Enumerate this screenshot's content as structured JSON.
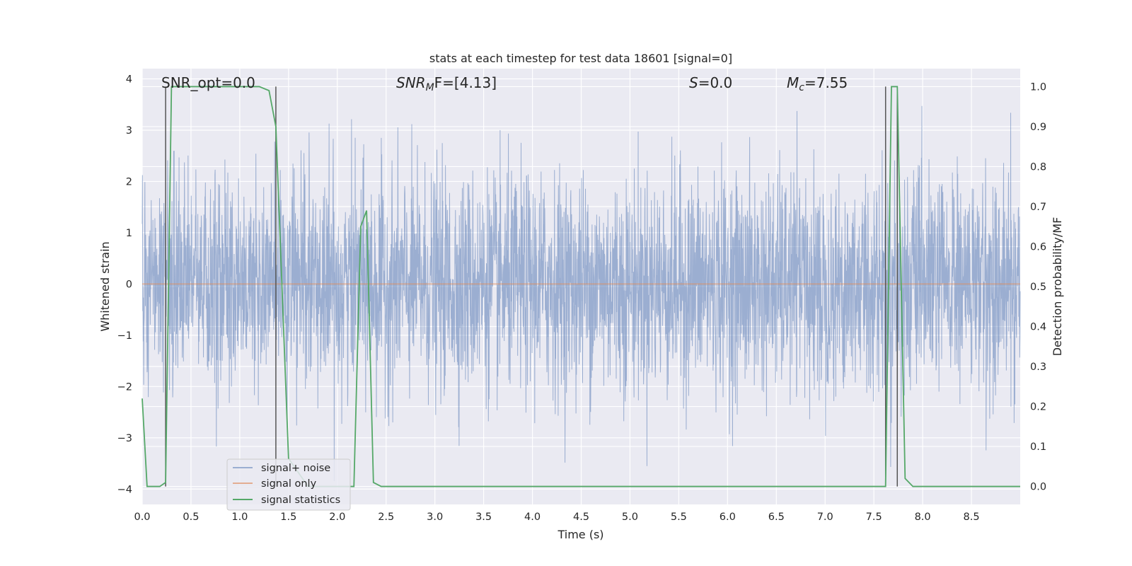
{
  "chart_data": {
    "type": "line",
    "title": "stats at each timestep for test data 18601 [signal=0]",
    "xlabel": "Time (s)",
    "ylabel_left": "Whitened strain",
    "ylabel_right": "Detection probability/MF",
    "xlim": [
      0.0,
      9.0
    ],
    "ylim_left": [
      -4.3,
      4.2
    ],
    "ylim_right": [
      -0.045,
      1.045
    ],
    "x_ticks": [
      "0.0",
      "0.5",
      "1.0",
      "1.5",
      "2.0",
      "2.5",
      "3.0",
      "3.5",
      "4.0",
      "4.5",
      "5.0",
      "5.5",
      "6.0",
      "6.5",
      "7.0",
      "7.5",
      "8.0",
      "8.5"
    ],
    "y_ticks_left": [
      "4",
      "3",
      "2",
      "1",
      "0",
      "−1",
      "−2",
      "−3",
      "−4"
    ],
    "y_ticks_right": [
      "1.0",
      "0.9",
      "0.8",
      "0.7",
      "0.6",
      "0.5",
      "0.4",
      "0.3",
      "0.2",
      "0.1",
      "0.0"
    ],
    "grid": true,
    "legend_position": "lower-left",
    "annotations": {
      "snr_opt": "SNR_opt=0.0",
      "snr_mf_main": "SNR",
      "snr_mf_sub": "M",
      "snr_mf_rest": "F=[4.13]",
      "s_main": "S",
      "s_rest": "=0.0",
      "mc_main": "M",
      "mc_sub": "c",
      "mc_rest": "=7.55"
    },
    "vertical_lines_x": [
      0.24,
      1.37,
      7.62,
      7.74
    ],
    "series": [
      {
        "name": "signal+ noise",
        "color": "#4c72b0",
        "axis": "left",
        "description_values": {
          "amplitude_envelope": [
            -4.0,
            3.5
          ]
        }
      },
      {
        "name": "signal only",
        "color": "#dd8452",
        "axis": "left",
        "x": [
          0.0,
          9.0
        ],
        "y": [
          0.0,
          0.0
        ]
      },
      {
        "name": "signal statistics",
        "color": "#55a868",
        "axis": "right",
        "x": [
          0.0,
          0.05,
          0.18,
          0.24,
          0.3,
          0.6,
          1.2,
          1.3,
          1.37,
          1.5,
          1.7,
          2.0,
          2.17,
          2.24,
          2.3,
          2.37,
          2.45,
          3.0,
          7.55,
          7.62,
          7.68,
          7.74,
          7.82,
          7.9,
          8.5,
          9.0
        ],
        "y": [
          0.22,
          0.0,
          0.0,
          0.01,
          1.0,
          1.0,
          1.0,
          0.99,
          0.9,
          0.07,
          0.0,
          0.0,
          0.0,
          0.65,
          0.69,
          0.01,
          0.0,
          0.0,
          0.0,
          0.0,
          1.0,
          1.0,
          0.02,
          0.0,
          0.0,
          0.0
        ]
      }
    ]
  }
}
